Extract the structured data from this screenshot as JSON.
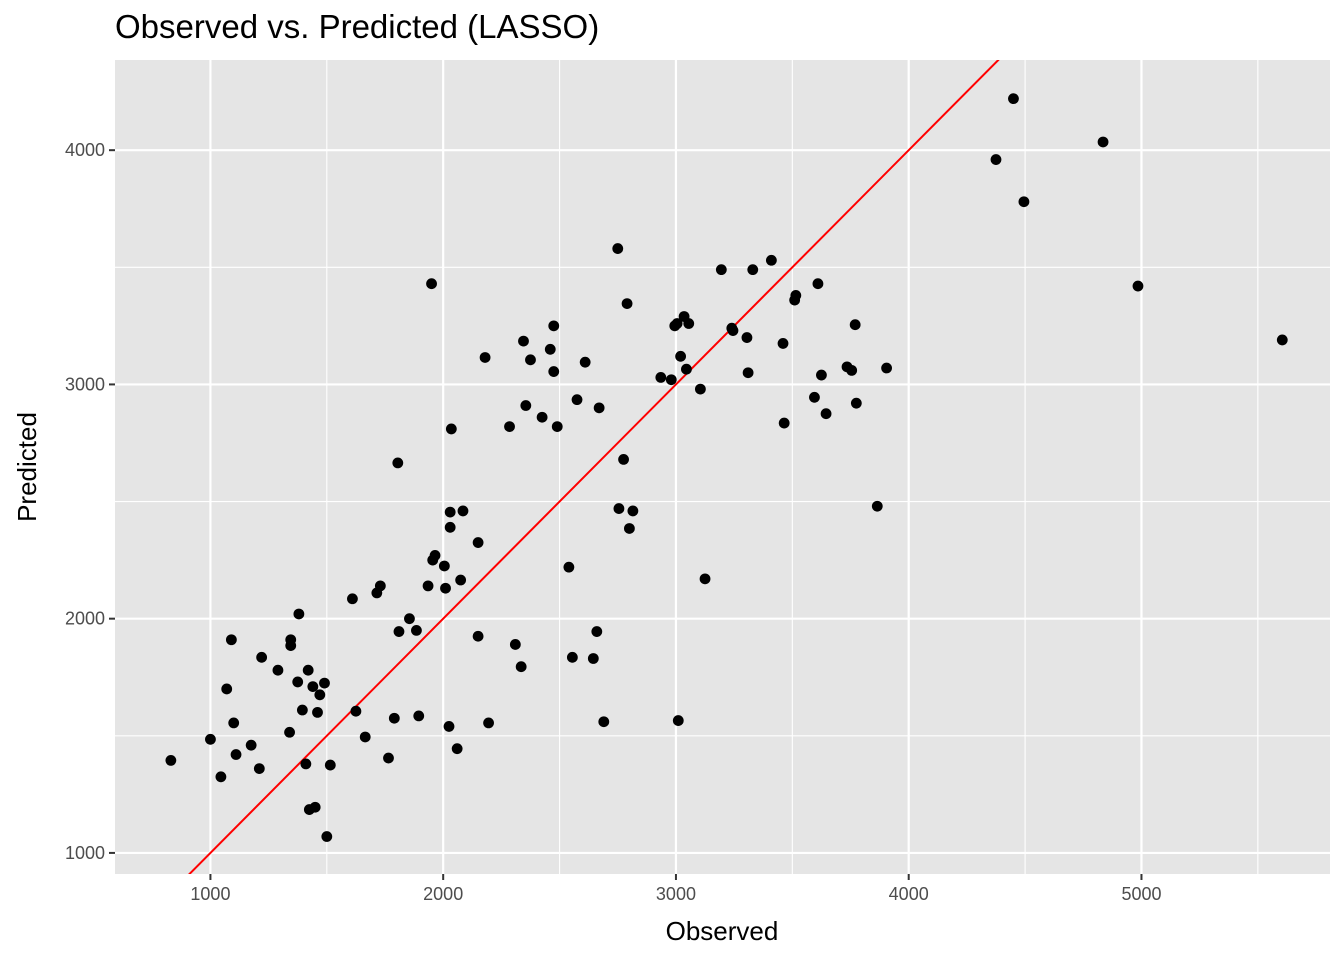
{
  "chart_data": {
    "type": "scatter",
    "title": "Observed vs. Predicted (LASSO)",
    "xlabel": "Observed",
    "ylabel": "Predicted",
    "xlim": [
      590,
      5810
    ],
    "ylim": [
      910,
      4385
    ],
    "x_ticks": [
      1000,
      2000,
      3000,
      4000,
      5000
    ],
    "y_ticks": [
      1000,
      2000,
      3000,
      4000
    ],
    "grid": true,
    "background_color": "#e5e5e5",
    "point_color": "#000000",
    "reference_line": {
      "type": "identity",
      "slope": 1,
      "intercept": 0,
      "color": "#ff0000"
    },
    "points": [
      {
        "x": 830,
        "y": 1395
      },
      {
        "x": 1000,
        "y": 1485
      },
      {
        "x": 1045,
        "y": 1325
      },
      {
        "x": 1070,
        "y": 1700
      },
      {
        "x": 1090,
        "y": 1910
      },
      {
        "x": 1100,
        "y": 1555
      },
      {
        "x": 1110,
        "y": 1420
      },
      {
        "x": 1175,
        "y": 1460
      },
      {
        "x": 1210,
        "y": 1360
      },
      {
        "x": 1220,
        "y": 1835
      },
      {
        "x": 1290,
        "y": 1780
      },
      {
        "x": 1340,
        "y": 1515
      },
      {
        "x": 1345,
        "y": 1910
      },
      {
        "x": 1345,
        "y": 1885
      },
      {
        "x": 1375,
        "y": 1730
      },
      {
        "x": 1380,
        "y": 2020
      },
      {
        "x": 1395,
        "y": 1610
      },
      {
        "x": 1410,
        "y": 1380
      },
      {
        "x": 1420,
        "y": 1780
      },
      {
        "x": 1425,
        "y": 1185
      },
      {
        "x": 1440,
        "y": 1710
      },
      {
        "x": 1450,
        "y": 1195
      },
      {
        "x": 1460,
        "y": 1600
      },
      {
        "x": 1470,
        "y": 1675
      },
      {
        "x": 1490,
        "y": 1725
      },
      {
        "x": 1500,
        "y": 1070
      },
      {
        "x": 1515,
        "y": 1375
      },
      {
        "x": 1610,
        "y": 2085
      },
      {
        "x": 1625,
        "y": 1605
      },
      {
        "x": 1665,
        "y": 1495
      },
      {
        "x": 1715,
        "y": 2110
      },
      {
        "x": 1730,
        "y": 2140
      },
      {
        "x": 1765,
        "y": 1405
      },
      {
        "x": 1790,
        "y": 1575
      },
      {
        "x": 1805,
        "y": 2665
      },
      {
        "x": 1810,
        "y": 1945
      },
      {
        "x": 1855,
        "y": 2000
      },
      {
        "x": 1885,
        "y": 1950
      },
      {
        "x": 1895,
        "y": 1585
      },
      {
        "x": 1935,
        "y": 2140
      },
      {
        "x": 1950,
        "y": 3430
      },
      {
        "x": 1955,
        "y": 2250
      },
      {
        "x": 1965,
        "y": 2270
      },
      {
        "x": 2005,
        "y": 2225
      },
      {
        "x": 2010,
        "y": 2130
      },
      {
        "x": 2025,
        "y": 1540
      },
      {
        "x": 2030,
        "y": 2455
      },
      {
        "x": 2030,
        "y": 2390
      },
      {
        "x": 2035,
        "y": 2810
      },
      {
        "x": 2060,
        "y": 1445
      },
      {
        "x": 2075,
        "y": 2165
      },
      {
        "x": 2085,
        "y": 2460
      },
      {
        "x": 2150,
        "y": 2325
      },
      {
        "x": 2150,
        "y": 1925
      },
      {
        "x": 2180,
        "y": 3115
      },
      {
        "x": 2195,
        "y": 1555
      },
      {
        "x": 2285,
        "y": 2820
      },
      {
        "x": 2310,
        "y": 1890
      },
      {
        "x": 2335,
        "y": 1795
      },
      {
        "x": 2345,
        "y": 3185
      },
      {
        "x": 2355,
        "y": 2910
      },
      {
        "x": 2375,
        "y": 3105
      },
      {
        "x": 2425,
        "y": 2860
      },
      {
        "x": 2460,
        "y": 3150
      },
      {
        "x": 2475,
        "y": 3250
      },
      {
        "x": 2475,
        "y": 3055
      },
      {
        "x": 2490,
        "y": 2820
      },
      {
        "x": 2540,
        "y": 2220
      },
      {
        "x": 2555,
        "y": 1835
      },
      {
        "x": 2575,
        "y": 2935
      },
      {
        "x": 2610,
        "y": 3095
      },
      {
        "x": 2645,
        "y": 1830
      },
      {
        "x": 2660,
        "y": 1945
      },
      {
        "x": 2670,
        "y": 2900
      },
      {
        "x": 2690,
        "y": 1560
      },
      {
        "x": 2750,
        "y": 3580
      },
      {
        "x": 2755,
        "y": 2470
      },
      {
        "x": 2775,
        "y": 2680
      },
      {
        "x": 2790,
        "y": 3345
      },
      {
        "x": 2800,
        "y": 2385
      },
      {
        "x": 2815,
        "y": 2460
      },
      {
        "x": 2935,
        "y": 3030
      },
      {
        "x": 2980,
        "y": 3020
      },
      {
        "x": 2995,
        "y": 3250
      },
      {
        "x": 3005,
        "y": 3260
      },
      {
        "x": 3010,
        "y": 1565
      },
      {
        "x": 3020,
        "y": 3120
      },
      {
        "x": 3035,
        "y": 3290
      },
      {
        "x": 3045,
        "y": 3065
      },
      {
        "x": 3055,
        "y": 3260
      },
      {
        "x": 3105,
        "y": 2980
      },
      {
        "x": 3125,
        "y": 2170
      },
      {
        "x": 3195,
        "y": 3490
      },
      {
        "x": 3240,
        "y": 3240
      },
      {
        "x": 3245,
        "y": 3230
      },
      {
        "x": 3305,
        "y": 3200
      },
      {
        "x": 3310,
        "y": 3050
      },
      {
        "x": 3330,
        "y": 3490
      },
      {
        "x": 3410,
        "y": 3530
      },
      {
        "x": 3460,
        "y": 3175
      },
      {
        "x": 3465,
        "y": 2835
      },
      {
        "x": 3510,
        "y": 3360
      },
      {
        "x": 3515,
        "y": 3380
      },
      {
        "x": 3595,
        "y": 2945
      },
      {
        "x": 3610,
        "y": 3430
      },
      {
        "x": 3625,
        "y": 3040
      },
      {
        "x": 3645,
        "y": 2875
      },
      {
        "x": 3735,
        "y": 3075
      },
      {
        "x": 3755,
        "y": 3060
      },
      {
        "x": 3770,
        "y": 3255
      },
      {
        "x": 3775,
        "y": 2920
      },
      {
        "x": 3865,
        "y": 2480
      },
      {
        "x": 3905,
        "y": 3070
      },
      {
        "x": 4375,
        "y": 3960
      },
      {
        "x": 4450,
        "y": 4220
      },
      {
        "x": 4495,
        "y": 3780
      },
      {
        "x": 4835,
        "y": 4035
      },
      {
        "x": 4985,
        "y": 3420
      },
      {
        "x": 5605,
        "y": 3190
      }
    ]
  }
}
